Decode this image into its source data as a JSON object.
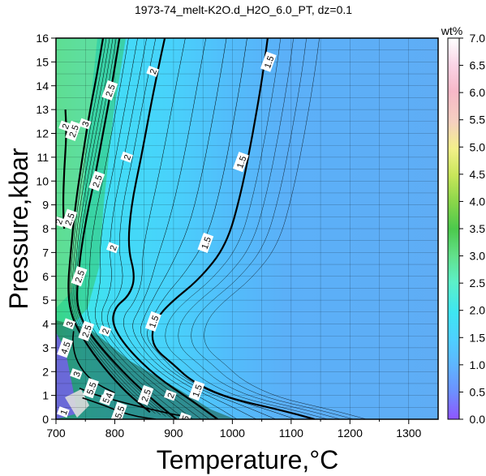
{
  "chart_data": {
    "type": "heatmap",
    "title": "1973-74_melt-K2O.d_H2O_6.0_PT, dz=0.1",
    "xlabel": "Temperature,°C",
    "ylabel": "Pressure,kbar",
    "xlim": [
      700,
      1350
    ],
    "ylim": [
      0,
      16
    ],
    "x_ticks": [
      700,
      800,
      900,
      1000,
      1100,
      1200,
      1300
    ],
    "y_ticks": [
      0,
      1,
      2,
      3,
      4,
      5,
      6,
      7,
      8,
      9,
      10,
      11,
      12,
      13,
      14,
      15,
      16
    ],
    "grid": true,
    "colorbar": {
      "label": "wt%",
      "range": [
        0.0,
        7.0
      ],
      "ticks": [
        "0.0",
        "0.5",
        "1.0",
        "1.5",
        "2.0",
        "2.5",
        "3.0",
        "3.5",
        "4.0",
        "4.5",
        "5.0",
        "5.5",
        "6.0",
        "6.5",
        "7.0"
      ],
      "colors": [
        "#8f55ff",
        "#6d8fff",
        "#5fb4ff",
        "#4ed0ff",
        "#3ee6f2",
        "#5cf0c8",
        "#62e08a",
        "#4cc94c",
        "#8ad64a",
        "#c8e65a",
        "#f3f08a",
        "#f5d0c0",
        "#f7b8c8",
        "#fad4e6",
        "#ffffff"
      ]
    },
    "contours": [
      {
        "level": 1.5,
        "label": "1.5",
        "points": [
          [
            1140,
            0
          ],
          [
            1080,
            0.4
          ],
          [
            990,
            0.9
          ],
          [
            930,
            1.6
          ],
          [
            900,
            2.3
          ],
          [
            870,
            2.9
          ],
          [
            862,
            3.5
          ],
          [
            870,
            4.2
          ],
          [
            895,
            4.9
          ],
          [
            945,
            5.9
          ],
          [
            990,
            7.3
          ],
          [
            1015,
            9.5
          ],
          [
            1035,
            12
          ],
          [
            1052,
            14.5
          ],
          [
            1060,
            16
          ]
        ]
      },
      {
        "level": 2,
        "label": "2",
        "points": [
          [
            975,
            0
          ],
          [
            930,
            0.8
          ],
          [
            870,
            1.8
          ],
          [
            820,
            3
          ],
          [
            795,
            4
          ],
          [
            800,
            4.7
          ],
          [
            825,
            5.2
          ],
          [
            835,
            6
          ],
          [
            822,
            7.2
          ],
          [
            828,
            9
          ],
          [
            845,
            11
          ],
          [
            860,
            13
          ],
          [
            872,
            14.5
          ],
          [
            885,
            16
          ]
        ]
      },
      {
        "level": 2.5,
        "label": "2.5",
        "points": [
          [
            905,
            0
          ],
          [
            870,
            0.7
          ],
          [
            825,
            1.7
          ],
          [
            780,
            2.9
          ],
          [
            755,
            3.7
          ],
          [
            742,
            4.3
          ],
          [
            735,
            5
          ],
          [
            738,
            6
          ],
          [
            742,
            7
          ],
          [
            752,
            8.5
          ],
          [
            765,
            10
          ],
          [
            780,
            12
          ],
          [
            795,
            14
          ],
          [
            808,
            16
          ]
        ]
      },
      {
        "level": 3,
        "label": "3",
        "points": [
          [
            860,
            0.3
          ],
          [
            820,
            1.1
          ],
          [
            780,
            2.2
          ],
          [
            745,
            3.4
          ],
          [
            725,
            4.4
          ],
          [
            720,
            5.5
          ],
          [
            725,
            7
          ],
          [
            733,
            9
          ],
          [
            745,
            11
          ],
          [
            758,
            13
          ],
          [
            770,
            14.5
          ],
          [
            780,
            16
          ]
        ]
      },
      {
        "level": 2,
        "label": "2",
        "points": [
          [
            716,
            13
          ],
          [
            718,
            12
          ],
          [
            714,
            10.5
          ],
          [
            712,
            9
          ],
          [
            714,
            8
          ]
        ]
      },
      {
        "level": 5.5,
        "label": "5.5",
        "points": [
          [
            745,
            0.9
          ],
          [
            780,
            0.6
          ],
          [
            810,
            0.3
          ],
          [
            840,
            0.1
          ],
          [
            870,
            0
          ]
        ]
      },
      {
        "level": 5,
        "label": "5",
        "points": [
          [
            740,
            1.3
          ],
          [
            770,
            1.0
          ],
          [
            800,
            0.8
          ],
          [
            830,
            0.6
          ],
          [
            865,
            0.4
          ],
          [
            900,
            0.2
          ],
          [
            925,
            0.1
          ]
        ]
      },
      {
        "level": 4.5,
        "label": "4.5",
        "points": [
          [
            730,
            3.7
          ],
          [
            728,
            3.2
          ],
          [
            735,
            2.4
          ],
          [
            760,
            1.6
          ],
          [
            800,
            1.1
          ]
        ]
      }
    ],
    "contour_labels": [
      {
        "text": "1.5",
        "x": 1062,
        "y": 15.0
      },
      {
        "text": "1.5",
        "x": 1015,
        "y": 10.8
      },
      {
        "text": "1.5",
        "x": 955,
        "y": 7.4
      },
      {
        "text": "1.5",
        "x": 866,
        "y": 4.1
      },
      {
        "text": "1.5",
        "x": 940,
        "y": 1.2
      },
      {
        "text": "2",
        "x": 865,
        "y": 14.6
      },
      {
        "text": "2",
        "x": 821,
        "y": 11.0
      },
      {
        "text": "2",
        "x": 797,
        "y": 7.2
      },
      {
        "text": "2",
        "x": 784,
        "y": 3.7
      },
      {
        "text": "2",
        "x": 895,
        "y": 1.0
      },
      {
        "text": "2",
        "x": 716,
        "y": 12.3
      },
      {
        "text": "2",
        "x": 705,
        "y": 8.3
      },
      {
        "text": "2.5",
        "x": 792,
        "y": 13.8
      },
      {
        "text": "2.5",
        "x": 770,
        "y": 10.0
      },
      {
        "text": "2.5",
        "x": 740,
        "y": 6.0
      },
      {
        "text": "2.5",
        "x": 752,
        "y": 3.7
      },
      {
        "text": "2.5",
        "x": 853,
        "y": 1.0
      },
      {
        "text": "2.5",
        "x": 730,
        "y": 12.1
      },
      {
        "text": "2.5",
        "x": 723,
        "y": 8.4
      },
      {
        "text": "3",
        "x": 750,
        "y": 12.4
      },
      {
        "text": "3",
        "x": 723,
        "y": 4.0
      },
      {
        "text": "4.5",
        "x": 716,
        "y": 3.0
      },
      {
        "text": "5.5",
        "x": 760,
        "y": 1.3
      },
      {
        "text": "5.5",
        "x": 808,
        "y": 0.3
      },
      {
        "text": "5",
        "x": 785,
        "y": 0.8
      },
      {
        "text": "5",
        "x": 920,
        "y": 0.05
      },
      {
        "text": "4",
        "x": 790,
        "y": 1.0
      },
      {
        "text": "3",
        "x": 735,
        "y": 1.9
      },
      {
        "text": "1",
        "x": 713,
        "y": 0.3
      }
    ]
  }
}
